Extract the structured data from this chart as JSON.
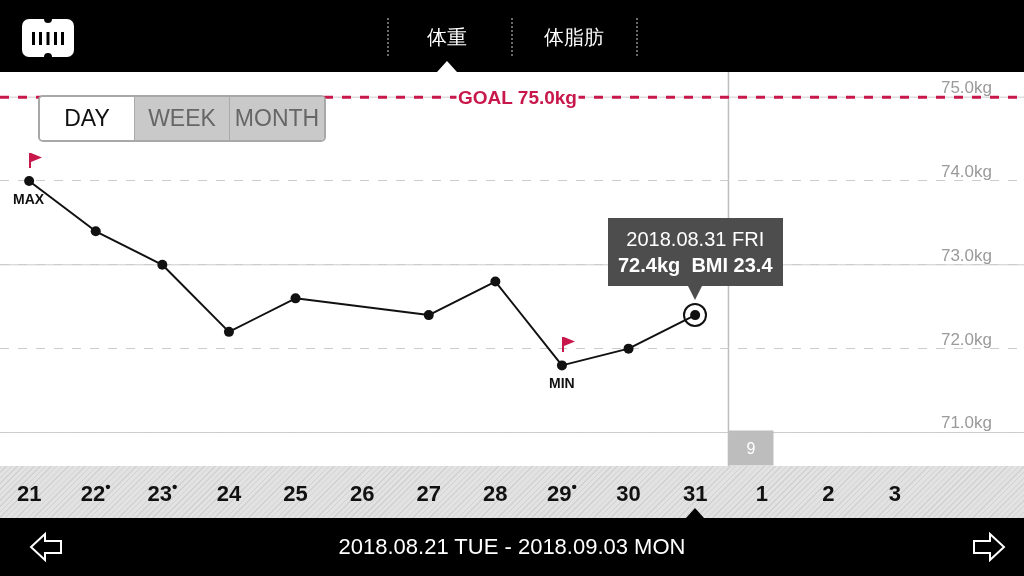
{
  "chart_data": {
    "type": "line",
    "title": "体重",
    "subtitle": "2018.08.21 TUE - 2018.09.03 MON",
    "x": [
      "2018-08-21",
      "2018-08-22",
      "2018-08-23",
      "2018-08-24",
      "2018-08-25",
      "2018-08-27",
      "2018-08-28",
      "2018-08-29",
      "2018-08-30",
      "2018-08-31"
    ],
    "series": [
      {
        "color": "#111111",
        "values": [
          74.0,
          73.4,
          73.0,
          72.2,
          72.6,
          72.4,
          72.8,
          71.8,
          72.0,
          72.4
        ]
      }
    ],
    "xlim": [
      "2018-08-20T13:30",
      "2018-09-04T22:30"
    ],
    "xticks": [
      {
        "value": "2018-08-21",
        "label": "21"
      },
      {
        "value": "2018-08-22",
        "label": "22$^{•}$"
      },
      {
        "value": "2018-08-23",
        "label": "23$^{•}$"
      },
      {
        "value": "2018-08-24",
        "label": "24"
      },
      {
        "value": "2018-08-25",
        "label": "25"
      },
      {
        "value": "2018-08-26",
        "label": "26"
      },
      {
        "value": "2018-08-27",
        "label": "27"
      },
      {
        "value": "2018-08-28",
        "label": "28"
      },
      {
        "value": "2018-08-29",
        "label": "29$^{•}$"
      },
      {
        "value": "2018-08-30",
        "label": "30"
      },
      {
        "value": "2018-08-31",
        "label": "31"
      },
      {
        "value": "2018-09-01",
        "label": "1"
      },
      {
        "value": "2018-09-02",
        "label": "2"
      },
      {
        "value": "2018-09-03",
        "label": "3"
      }
    ],
    "ylim": [
      70.6,
      75.3
    ],
    "yticks": [
      {
        "value": 71,
        "label": "71.0kg"
      },
      {
        "value": 72,
        "label": "72.0kg"
      },
      {
        "value": 73,
        "label": "73.0kg"
      },
      {
        "value": 74,
        "label": "74.0kg"
      },
      {
        "value": 75,
        "label": "75.0kg"
      }
    ],
    "grid": "y",
    "marker": "circle",
    "line_style": "solid",
    "ref_lines": [
      {
        "axis": "y",
        "value": 75,
        "label": "GOAL 75.0kg",
        "color": "#c8174a",
        "line_style": "dashed"
      },
      {
        "axis": "x",
        "value": "2018-08-31T12:00",
        "label": "9",
        "color": "#bdbdbd",
        "line_style": "solid"
      }
    ],
    "annotations": [
      "体脂肪",
      "DAY",
      "WEEK",
      "MONTH",
      {
        "text": "MAX",
        "x": "2018-08-21",
        "y": 74.0
      },
      {
        "text": "MIN",
        "x": "2018-08-29",
        "y": 71.8
      },
      {
        "text": "2018.08.31 FRI\n72.4kg  BMI 23.4",
        "x": "2018-08-31",
        "y": 72.4
      }
    ]
  }
}
